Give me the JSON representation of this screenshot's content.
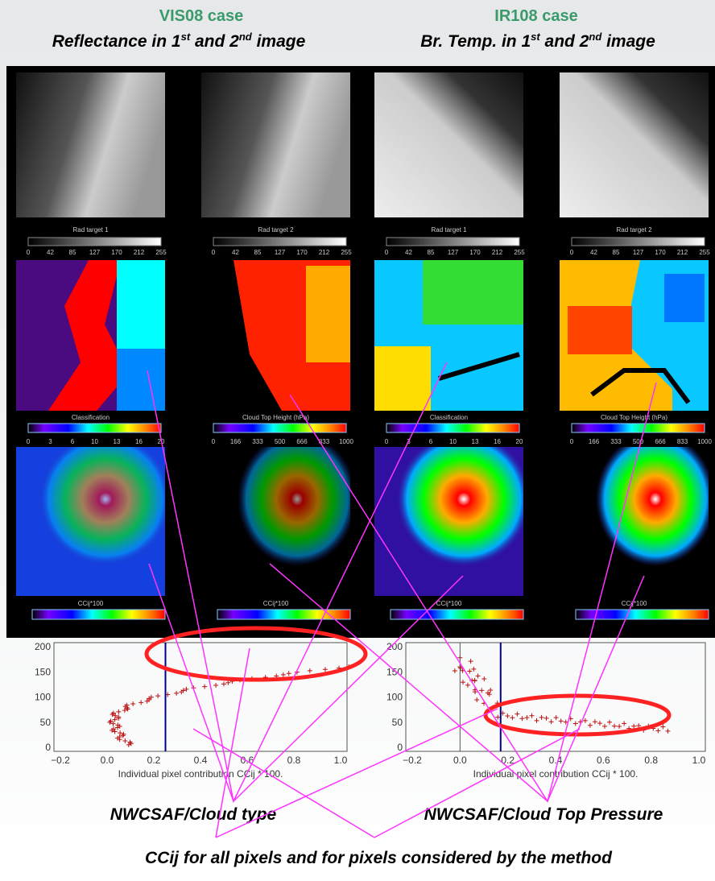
{
  "header": {
    "left": {
      "title": "VIS08 case",
      "subtitle": [
        "Reflectance in 1",
        "st",
        " and 2",
        "nd",
        " image"
      ]
    },
    "right": {
      "title": "IR108 case",
      "subtitle": [
        "Br. Temp. in 1",
        "st",
        " and 2",
        "nd",
        " image"
      ]
    }
  },
  "panels": [
    {
      "image_label": "Rad target 1",
      "image_ticks": [
        "0",
        "42",
        "85",
        "127",
        "170",
        "212",
        "255"
      ],
      "product_label": "Classification",
      "product_ticks": [
        "0",
        "3",
        "6",
        "10",
        "13",
        "16",
        "20"
      ],
      "cc_label": "CCij*100"
    },
    {
      "image_label": "Rad target 2",
      "image_ticks": [
        "0",
        "42",
        "85",
        "127",
        "170",
        "212",
        "255"
      ],
      "product_label": "Cloud Top Height (hPa)",
      "product_ticks": [
        "0",
        "166",
        "333",
        "500",
        "666",
        "833",
        "1000"
      ],
      "cc_label": "CCij*100"
    },
    {
      "image_label": "Rad target 1",
      "image_ticks": [
        "0",
        "42",
        "85",
        "127",
        "170",
        "212",
        "255"
      ],
      "product_label": "Classification",
      "product_ticks": [
        "0",
        "3",
        "6",
        "10",
        "13",
        "16",
        "20"
      ],
      "cc_label": "CCij*100"
    },
    {
      "image_label": "Rad target 2",
      "image_ticks": [
        "0",
        "42",
        "85",
        "127",
        "170",
        "212",
        "255"
      ],
      "product_label": "Cloud Top Height (hPa)",
      "product_ticks": [
        "0",
        "166",
        "333",
        "500",
        "666",
        "833",
        "1000"
      ],
      "cc_label": "CCij*100"
    }
  ],
  "plots": [
    {
      "yticks": [
        "200",
        "150",
        "100",
        "50",
        "0"
      ],
      "xticks": [
        "−0.2",
        "0.0",
        "0.2",
        "0.4",
        "0.6",
        "0.8",
        "1.0"
      ],
      "xlabel": "Individual pixel contribution CCij * 100."
    },
    {
      "yticks": [
        "200",
        "150",
        "100",
        "50",
        "0"
      ],
      "xticks": [
        "−0.2",
        "0.0",
        "0.2",
        "0.4",
        "0.6",
        "0.8",
        "1.0"
      ],
      "xlabel": "Individual pixel contribution CCij * 100."
    }
  ],
  "captions": {
    "left": "NWCSAF/Cloud type",
    "right": "NWCSAF/Cloud Top Pressure",
    "bottom": "CCij for all pixels and for pixels considered by the method"
  }
}
